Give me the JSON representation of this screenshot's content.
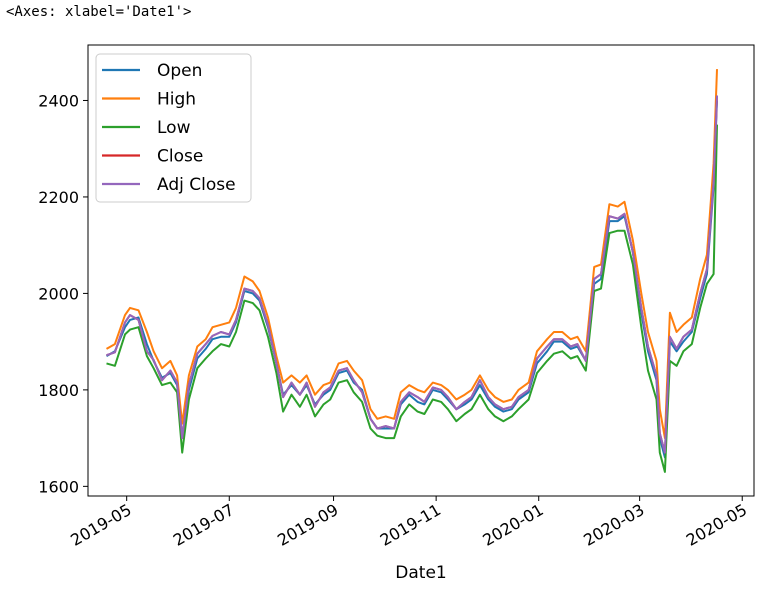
{
  "header_text": "<Axes: xlabel='Date1'>",
  "chart_data": {
    "type": "line",
    "xlabel": "Date1",
    "ylabel": "",
    "ylim": [
      1580,
      2515
    ],
    "xlim": [
      "2019-04-08",
      "2020-05-08"
    ],
    "grid": false,
    "legend_position": "upper-left",
    "y_ticks": [
      1600,
      1800,
      2000,
      2200,
      2400
    ],
    "x_ticks": [
      {
        "date": "2019-05-01",
        "label": "2019-05"
      },
      {
        "date": "2019-07-01",
        "label": "2019-07"
      },
      {
        "date": "2019-09-01",
        "label": "2019-09"
      },
      {
        "date": "2019-11-01",
        "label": "2019-11"
      },
      {
        "date": "2020-01-01",
        "label": "2020-01"
      },
      {
        "date": "2020-03-01",
        "label": "2020-03"
      },
      {
        "date": "2020-05-01",
        "label": "2020-05"
      }
    ],
    "x": [
      "2019-04-19",
      "2019-04-24",
      "2019-04-30",
      "2019-05-03",
      "2019-05-08",
      "2019-05-13",
      "2019-05-17",
      "2019-05-22",
      "2019-05-27",
      "2019-05-31",
      "2019-06-03",
      "2019-06-07",
      "2019-06-12",
      "2019-06-17",
      "2019-06-21",
      "2019-06-26",
      "2019-07-01",
      "2019-07-05",
      "2019-07-10",
      "2019-07-15",
      "2019-07-19",
      "2019-07-24",
      "2019-07-29",
      "2019-08-02",
      "2019-08-07",
      "2019-08-12",
      "2019-08-16",
      "2019-08-21",
      "2019-08-26",
      "2019-08-30",
      "2019-09-04",
      "2019-09-09",
      "2019-09-13",
      "2019-09-18",
      "2019-09-23",
      "2019-09-27",
      "2019-10-02",
      "2019-10-07",
      "2019-10-11",
      "2019-10-16",
      "2019-10-21",
      "2019-10-25",
      "2019-10-30",
      "2019-11-04",
      "2019-11-08",
      "2019-11-13",
      "2019-11-18",
      "2019-11-22",
      "2019-11-27",
      "2019-12-02",
      "2019-12-06",
      "2019-12-11",
      "2019-12-16",
      "2019-12-20",
      "2019-12-26",
      "2019-12-31",
      "2020-01-06",
      "2020-01-10",
      "2020-01-15",
      "2020-01-20",
      "2020-01-24",
      "2020-01-29",
      "2020-02-03",
      "2020-02-07",
      "2020-02-12",
      "2020-02-17",
      "2020-02-21",
      "2020-02-26",
      "2020-03-02",
      "2020-03-06",
      "2020-03-11",
      "2020-03-13",
      "2020-03-16",
      "2020-03-19",
      "2020-03-23",
      "2020-03-27",
      "2020-04-01",
      "2020-04-06",
      "2020-04-10",
      "2020-04-14",
      "2020-04-16"
    ],
    "series": [
      {
        "name": "Open",
        "color": "#1f77b4",
        "values": [
          1870,
          1880,
          1930,
          1945,
          1950,
          1895,
          1860,
          1825,
          1835,
          1810,
          1700,
          1800,
          1865,
          1885,
          1905,
          1910,
          1910,
          1940,
          2005,
          2000,
          1985,
          1930,
          1855,
          1790,
          1810,
          1790,
          1810,
          1770,
          1790,
          1800,
          1835,
          1840,
          1815,
          1800,
          1740,
          1720,
          1720,
          1720,
          1770,
          1790,
          1775,
          1770,
          1800,
          1795,
          1780,
          1760,
          1770,
          1780,
          1810,
          1780,
          1765,
          1755,
          1760,
          1780,
          1795,
          1855,
          1880,
          1900,
          1900,
          1885,
          1890,
          1860,
          2020,
          2030,
          2150,
          2150,
          2160,
          2085,
          1960,
          1880,
          1820,
          1700,
          1660,
          1900,
          1880,
          1900,
          1920,
          1990,
          2040,
          2220,
          2400
        ]
      },
      {
        "name": "High",
        "color": "#ff7f0e",
        "values": [
          1885,
          1895,
          1955,
          1970,
          1965,
          1920,
          1880,
          1845,
          1860,
          1830,
          1730,
          1830,
          1890,
          1905,
          1930,
          1935,
          1940,
          1970,
          2035,
          2025,
          2005,
          1950,
          1870,
          1815,
          1830,
          1815,
          1830,
          1790,
          1810,
          1815,
          1855,
          1860,
          1840,
          1820,
          1760,
          1740,
          1745,
          1740,
          1795,
          1810,
          1800,
          1795,
          1815,
          1810,
          1800,
          1780,
          1790,
          1800,
          1830,
          1800,
          1785,
          1775,
          1780,
          1800,
          1815,
          1880,
          1905,
          1920,
          1920,
          1905,
          1910,
          1880,
          2055,
          2060,
          2185,
          2180,
          2190,
          2110,
          2000,
          1920,
          1860,
          1760,
          1700,
          1960,
          1920,
          1935,
          1950,
          2030,
          2080,
          2270,
          2465
        ]
      },
      {
        "name": "Low",
        "color": "#2ca02c",
        "values": [
          1855,
          1850,
          1915,
          1925,
          1930,
          1870,
          1845,
          1810,
          1815,
          1795,
          1670,
          1780,
          1845,
          1865,
          1880,
          1895,
          1890,
          1920,
          1985,
          1980,
          1965,
          1910,
          1835,
          1755,
          1790,
          1765,
          1790,
          1745,
          1770,
          1780,
          1815,
          1820,
          1795,
          1775,
          1720,
          1705,
          1700,
          1700,
          1745,
          1770,
          1755,
          1750,
          1780,
          1775,
          1760,
          1735,
          1750,
          1760,
          1790,
          1760,
          1745,
          1735,
          1745,
          1760,
          1780,
          1835,
          1860,
          1875,
          1880,
          1865,
          1870,
          1840,
          2005,
          2010,
          2125,
          2130,
          2130,
          2060,
          1930,
          1840,
          1780,
          1670,
          1630,
          1860,
          1850,
          1880,
          1895,
          1970,
          2020,
          2040,
          2350
        ]
      },
      {
        "name": "Close",
        "color": "#d62728",
        "values": [
          1872,
          1878,
          1940,
          1955,
          1945,
          1880,
          1862,
          1820,
          1840,
          1815,
          1700,
          1810,
          1875,
          1895,
          1912,
          1920,
          1915,
          1945,
          2010,
          2005,
          1990,
          1935,
          1855,
          1785,
          1815,
          1790,
          1815,
          1765,
          1795,
          1805,
          1840,
          1845,
          1820,
          1795,
          1740,
          1720,
          1725,
          1720,
          1775,
          1795,
          1785,
          1775,
          1805,
          1800,
          1785,
          1760,
          1775,
          1785,
          1820,
          1785,
          1770,
          1760,
          1765,
          1785,
          1800,
          1865,
          1890,
          1905,
          1905,
          1890,
          1895,
          1860,
          2030,
          2040,
          2160,
          2155,
          2165,
          2085,
          1970,
          1890,
          1830,
          1710,
          1670,
          1910,
          1885,
          1910,
          1925,
          2000,
          2050,
          2230,
          2410
        ]
      },
      {
        "name": "Adj Close",
        "color": "#9467bd",
        "values": [
          1872,
          1878,
          1940,
          1955,
          1945,
          1880,
          1862,
          1820,
          1840,
          1815,
          1700,
          1810,
          1875,
          1895,
          1912,
          1920,
          1915,
          1945,
          2010,
          2005,
          1990,
          1935,
          1855,
          1785,
          1815,
          1790,
          1815,
          1765,
          1795,
          1805,
          1840,
          1845,
          1820,
          1795,
          1740,
          1720,
          1725,
          1720,
          1775,
          1795,
          1785,
          1775,
          1805,
          1800,
          1785,
          1760,
          1775,
          1785,
          1820,
          1785,
          1770,
          1760,
          1765,
          1785,
          1800,
          1865,
          1890,
          1905,
          1905,
          1890,
          1895,
          1860,
          2030,
          2040,
          2160,
          2155,
          2165,
          2085,
          1970,
          1890,
          1830,
          1710,
          1670,
          1910,
          1885,
          1910,
          1925,
          2000,
          2050,
          2230,
          2410
        ]
      }
    ]
  }
}
